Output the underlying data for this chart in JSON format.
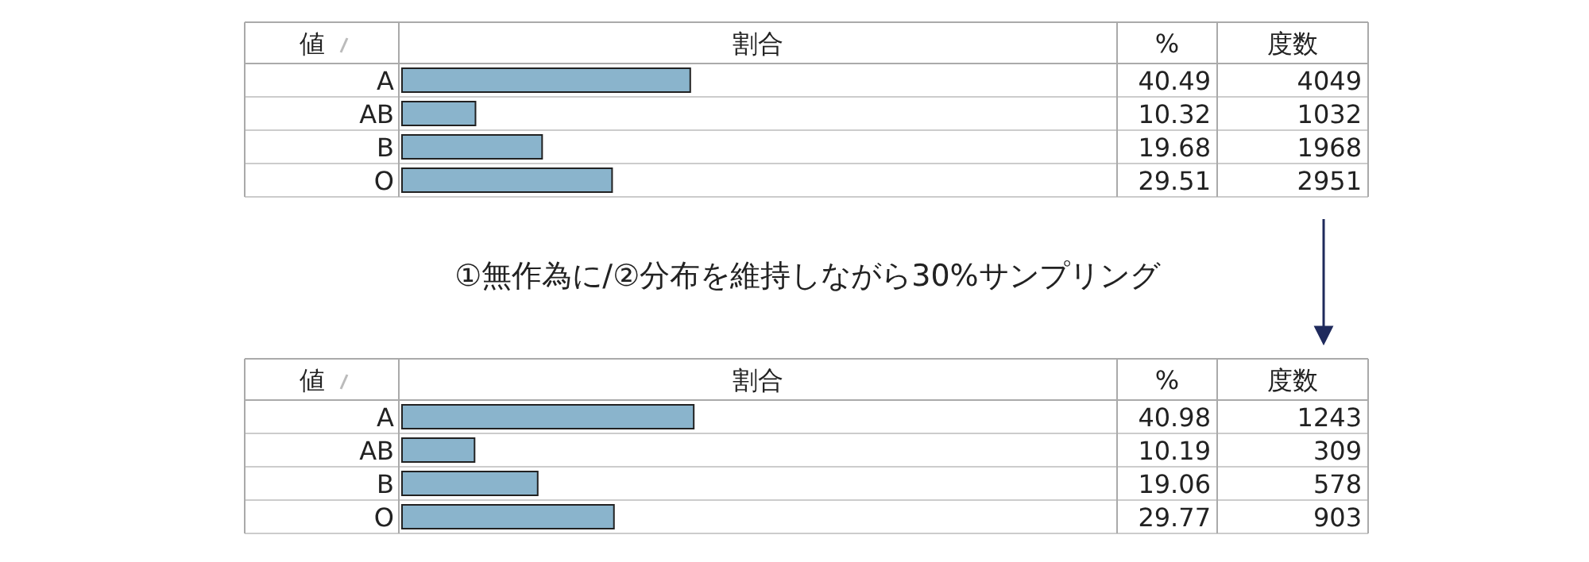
{
  "chart_data": [
    {
      "type": "bar",
      "orientation": "horizontal",
      "ylabel": "値",
      "xlabel": "割合",
      "categories": [
        "A",
        "AB",
        "B",
        "O"
      ],
      "xlim": [
        0,
        100
      ],
      "data_labels": true,
      "annotations": [
        "度数",
        "4049",
        "1032",
        "1968",
        "2951"
      ],
      "series": [
        {
          "name": "%",
          "color": "#8ab4cc",
          "values": [
            40.49,
            10.32,
            19.68,
            29.51
          ]
        }
      ]
    },
    {
      "type": "bar",
      "orientation": "horizontal",
      "title": "①無作為に/②分布を維持しながら30%サンプリング",
      "ylabel": "値",
      "xlabel": "割合",
      "categories": [
        "A",
        "AB",
        "B",
        "O"
      ],
      "xlim": [
        0,
        100
      ],
      "data_labels": true,
      "annotations": [
        "度数",
        "1243",
        "309",
        "578",
        "903"
      ],
      "series": [
        {
          "name": "%",
          "color": "#8ab4cc",
          "values": [
            40.98,
            10.19,
            19.06,
            29.77
          ]
        }
      ]
    }
  ]
}
